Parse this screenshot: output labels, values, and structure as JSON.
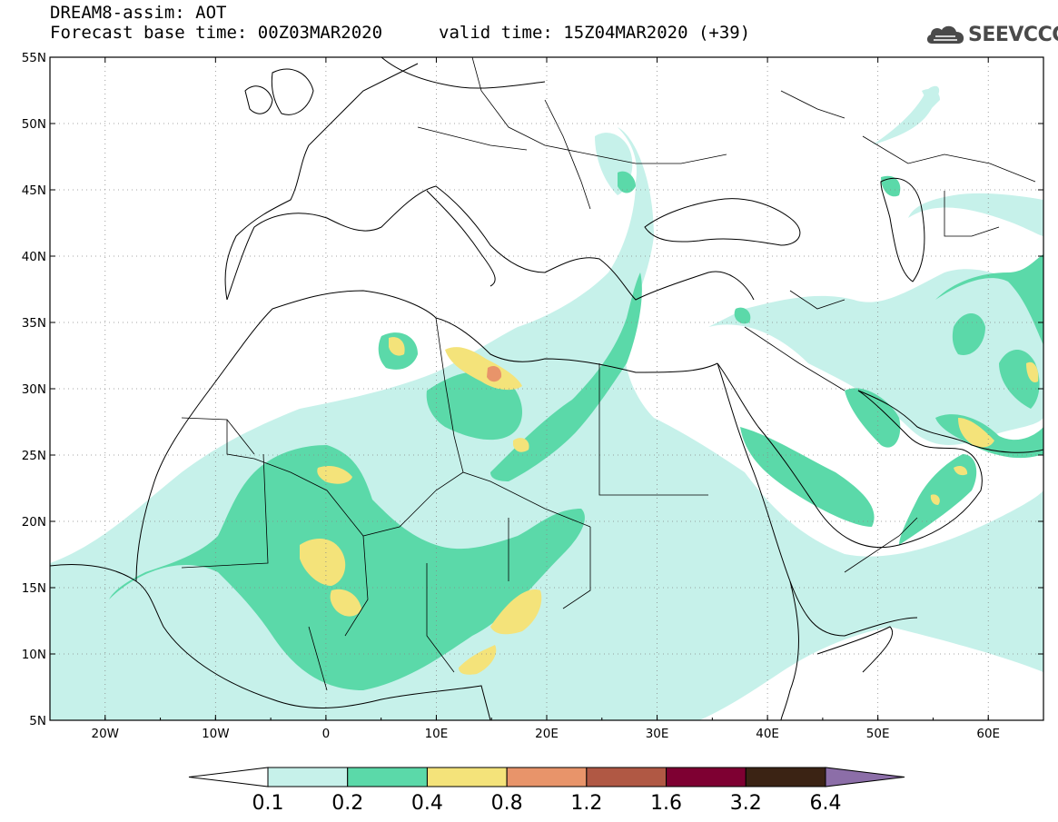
{
  "header": {
    "title": "DREAM8-assim: AOT",
    "base_time": "Forecast base time: 00Z03MAR2020",
    "valid_time": "valid time: 15Z04MAR2020 (+39)",
    "logo_text": "SEEVCCC",
    "logo_icon": "cloud-logo-icon"
  },
  "map": {
    "lon_range": [
      -25,
      65
    ],
    "lat_range": [
      5,
      55
    ],
    "lat_labels": [
      "55N",
      "50N",
      "45N",
      "40N",
      "35N",
      "30N",
      "25N",
      "20N",
      "15N",
      "10N",
      "5N"
    ],
    "lon_labels": [
      "20W",
      "10W",
      "0",
      "10E",
      "20E",
      "30E",
      "40E",
      "50E",
      "60E"
    ],
    "gridlines": "dotted"
  },
  "colorbar": {
    "colors": [
      "#c6f1ea",
      "#5bd9a9",
      "#f4e37a",
      "#e8946a",
      "#b05844",
      "#7e0032",
      "#3b2314",
      "#8c6ea8"
    ],
    "labels": [
      "0.1",
      "0.2",
      "0.4",
      "0.8",
      "1.2",
      "1.6",
      "3.2",
      "6.4"
    ]
  }
}
